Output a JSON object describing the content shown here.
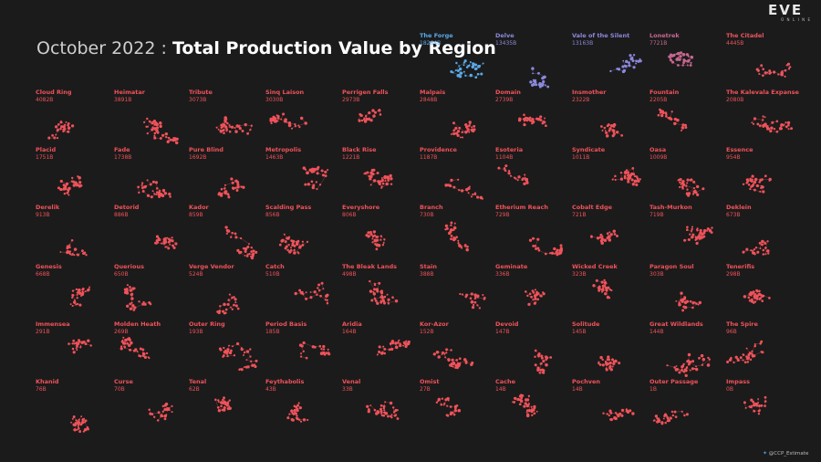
{
  "header": {
    "title_light": "October 2022",
    "title_sep": ":",
    "title_bold": "Total Production Value by Region"
  },
  "logo": {
    "main": "EVE",
    "sub": "ONLINE"
  },
  "credit": {
    "handle": "@CCP_Estimate"
  },
  "colors": {
    "background": "#1b1b1b",
    "scale_high": "#5aa8e8",
    "scale_mid": "#8e86dc",
    "scale_low": "#f0525a"
  },
  "chart_data": {
    "type": "table",
    "title": "October 2022 : Total Production Value by Region",
    "layout": "small-multiples grid of region maps",
    "regions": [
      {
        "name": "The Forge",
        "value": "18264B"
      },
      {
        "name": "Delve",
        "value": "13435B"
      },
      {
        "name": "Vale of the Silent",
        "value": "13163B"
      },
      {
        "name": "Lonetrek",
        "value": "7721B"
      },
      {
        "name": "The Citadel",
        "value": "4445B"
      },
      {
        "name": "Cloud Ring",
        "value": "4082B"
      },
      {
        "name": "Heimatar",
        "value": "3891B"
      },
      {
        "name": "Tribute",
        "value": "3073B"
      },
      {
        "name": "Sinq Laison",
        "value": "3030B"
      },
      {
        "name": "Perrigen Falls",
        "value": "2973B"
      },
      {
        "name": "Malpais",
        "value": "2848B"
      },
      {
        "name": "Domain",
        "value": "2739B"
      },
      {
        "name": "Insmother",
        "value": "2322B"
      },
      {
        "name": "Fountain",
        "value": "2205B"
      },
      {
        "name": "The Kalevala Expanse",
        "value": "2080B"
      },
      {
        "name": "Placid",
        "value": "1751B"
      },
      {
        "name": "Fade",
        "value": "1738B"
      },
      {
        "name": "Pure Blind",
        "value": "1692B"
      },
      {
        "name": "Metropolis",
        "value": "1463B"
      },
      {
        "name": "Black Rise",
        "value": "1221B"
      },
      {
        "name": "Providence",
        "value": "1187B"
      },
      {
        "name": "Esoteria",
        "value": "1104B"
      },
      {
        "name": "Syndicate",
        "value": "1011B"
      },
      {
        "name": "Oasa",
        "value": "1009B"
      },
      {
        "name": "Essence",
        "value": "954B"
      },
      {
        "name": "Derelik",
        "value": "913B"
      },
      {
        "name": "Detorid",
        "value": "886B"
      },
      {
        "name": "Kador",
        "value": "859B"
      },
      {
        "name": "Scalding Pass",
        "value": "856B"
      },
      {
        "name": "Everyshore",
        "value": "806B"
      },
      {
        "name": "Branch",
        "value": "730B"
      },
      {
        "name": "Etherium Reach",
        "value": "729B"
      },
      {
        "name": "Cobalt Edge",
        "value": "721B"
      },
      {
        "name": "Tash-Murkon",
        "value": "719B"
      },
      {
        "name": "Deklein",
        "value": "673B"
      },
      {
        "name": "Genesis",
        "value": "668B"
      },
      {
        "name": "Querious",
        "value": "650B"
      },
      {
        "name": "Verge Vendor",
        "value": "524B"
      },
      {
        "name": "Catch",
        "value": "510B"
      },
      {
        "name": "The Bleak Lands",
        "value": "498B"
      },
      {
        "name": "Stain",
        "value": "388B"
      },
      {
        "name": "Geminate",
        "value": "336B"
      },
      {
        "name": "Wicked Creek",
        "value": "323B"
      },
      {
        "name": "Paragon Soul",
        "value": "303B"
      },
      {
        "name": "Tenerifis",
        "value": "298B"
      },
      {
        "name": "Immensea",
        "value": "291B"
      },
      {
        "name": "Molden Heath",
        "value": "269B"
      },
      {
        "name": "Outer Ring",
        "value": "193B"
      },
      {
        "name": "Period Basis",
        "value": "185B"
      },
      {
        "name": "Aridia",
        "value": "164B"
      },
      {
        "name": "Kor-Azor",
        "value": "152B"
      },
      {
        "name": "Devoid",
        "value": "147B"
      },
      {
        "name": "Solitude",
        "value": "145B"
      },
      {
        "name": "Great Wildlands",
        "value": "144B"
      },
      {
        "name": "The Spire",
        "value": "96B"
      },
      {
        "name": "Khanid",
        "value": "76B"
      },
      {
        "name": "Curse",
        "value": "70B"
      },
      {
        "name": "Tenal",
        "value": "62B"
      },
      {
        "name": "Feythabolis",
        "value": "43B"
      },
      {
        "name": "Venal",
        "value": "33B"
      },
      {
        "name": "Omist",
        "value": "27B"
      },
      {
        "name": "Cache",
        "value": "14B"
      },
      {
        "name": "Pochven",
        "value": "14B"
      },
      {
        "name": "Outer Passage",
        "value": "1B"
      },
      {
        "name": "Impass",
        "value": "0B"
      }
    ]
  }
}
